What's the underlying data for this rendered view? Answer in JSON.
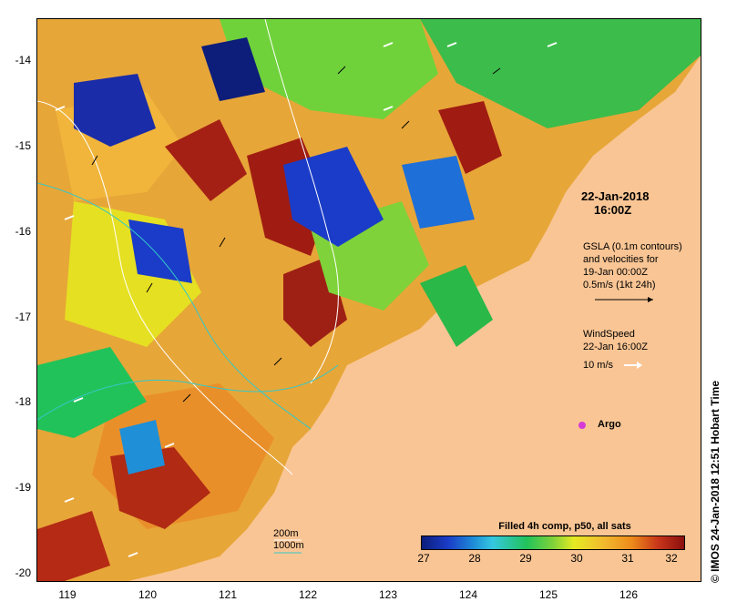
{
  "map": {
    "title_date": "22-Jan-2018",
    "title_time": "16:00Z",
    "x_ticks": [
      "119",
      "120",
      "121",
      "122",
      "123",
      "124",
      "125",
      "126"
    ],
    "y_ticks": [
      "-14",
      "-15",
      "-16",
      "-17",
      "-18",
      "-19",
      "-20"
    ],
    "gsla_text": [
      "GSLA (0.1m contours)",
      "and velocities for",
      "19-Jan 00:00Z",
      "0.5m/s (1kt 24h)"
    ],
    "wind_text": [
      "WindSpeed",
      "22-Jan 16:00Z"
    ],
    "wind_scale_label": "10 m/s",
    "argo_label": "Argo",
    "contour_legend": [
      "200m",
      "1000m"
    ],
    "colorbar_title": "Filled 4h comp, p50, all sats",
    "colorbar_ticks": [
      "27",
      "28",
      "29",
      "30",
      "31",
      "32"
    ],
    "credit": "© IMOS 24-Jan-2018 12:51 Hobart Time",
    "colors": {
      "land": "#f9c594",
      "argo": "#d63ad6",
      "contour_200": "#ffffff",
      "contour_1000": "#35c8c8"
    }
  }
}
